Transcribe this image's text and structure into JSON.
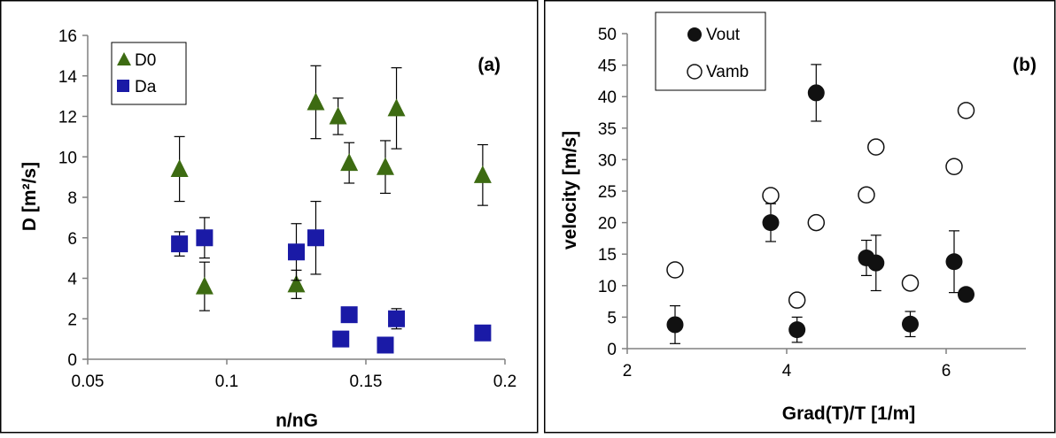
{
  "chart_data": [
    {
      "type": "scatter",
      "panel_label": "(a)",
      "xlabel": "n/nG",
      "ylabel": "D [m²/s]",
      "xlim": [
        0.05,
        0.2
      ],
      "ylim": [
        0,
        16
      ],
      "x_ticks": [
        "0.05",
        "0.1",
        "0.15",
        "0.2"
      ],
      "y_ticks": [
        "0",
        "2",
        "4",
        "6",
        "8",
        "10",
        "12",
        "14",
        "16"
      ],
      "x_tick_values": [
        0.05,
        0.1,
        0.15,
        0.2
      ],
      "y_tick_values": [
        0,
        2,
        4,
        6,
        8,
        10,
        12,
        14,
        16
      ],
      "grid": false,
      "legend_position": "top-left",
      "series": [
        {
          "name": "D0",
          "marker": "triangle",
          "color": "#3d6b12",
          "points": [
            {
              "x": 0.083,
              "y": 9.4,
              "err": 1.6
            },
            {
              "x": 0.092,
              "y": 3.6,
              "err": 1.2
            },
            {
              "x": 0.125,
              "y": 3.7,
              "err": 0.7
            },
            {
              "x": 0.132,
              "y": 12.7,
              "err": 1.8
            },
            {
              "x": 0.14,
              "y": 12.0,
              "err": 0.9
            },
            {
              "x": 0.144,
              "y": 9.7,
              "err": 1.0
            },
            {
              "x": 0.157,
              "y": 9.5,
              "err": 1.3
            },
            {
              "x": 0.161,
              "y": 12.4,
              "err": 2.0
            },
            {
              "x": 0.192,
              "y": 9.1,
              "err": 1.5
            }
          ]
        },
        {
          "name": "Da",
          "marker": "square",
          "color": "#1a1aa6",
          "points": [
            {
              "x": 0.083,
              "y": 5.7,
              "err": 0.6
            },
            {
              "x": 0.092,
              "y": 6.0,
              "err": 1.0
            },
            {
              "x": 0.125,
              "y": 5.3,
              "err": 1.4
            },
            {
              "x": 0.132,
              "y": 6.0,
              "err": 1.8
            },
            {
              "x": 0.141,
              "y": 1.0,
              "err": 0
            },
            {
              "x": 0.144,
              "y": 2.2,
              "err": 0
            },
            {
              "x": 0.157,
              "y": 0.7,
              "err": 0
            },
            {
              "x": 0.161,
              "y": 2.0,
              "err": 0.5
            },
            {
              "x": 0.192,
              "y": 1.3,
              "err": 0
            }
          ]
        }
      ]
    },
    {
      "type": "scatter",
      "panel_label": "(b)",
      "xlabel": "Grad(T)/T [1/m]",
      "ylabel": "velocity [m/s]",
      "xlim": [
        2,
        7
      ],
      "ylim": [
        0,
        50
      ],
      "x_ticks": [
        "2",
        "4",
        "6"
      ],
      "y_ticks": [
        "0",
        "5",
        "10",
        "15",
        "20",
        "25",
        "30",
        "35",
        "40",
        "45",
        "50"
      ],
      "x_tick_values": [
        2,
        4,
        6
      ],
      "y_tick_values": [
        0,
        5,
        10,
        15,
        20,
        25,
        30,
        35,
        40,
        45,
        50
      ],
      "grid": false,
      "legend_position": "top-left",
      "series": [
        {
          "name": "Vout",
          "marker": "filled-circle",
          "color": "#111111",
          "points": [
            {
              "x": 2.6,
              "y": 3.8,
              "err": 3.0
            },
            {
              "x": 3.8,
              "y": 20.0,
              "err": 3.0
            },
            {
              "x": 4.13,
              "y": 3.0,
              "err": 2.0
            },
            {
              "x": 4.37,
              "y": 40.6,
              "err": 4.5
            },
            {
              "x": 5.0,
              "y": 14.4,
              "err": 2.8
            },
            {
              "x": 5.12,
              "y": 13.6,
              "err": 4.4
            },
            {
              "x": 5.55,
              "y": 3.9,
              "err": 2.0
            },
            {
              "x": 6.1,
              "y": 13.8,
              "err": 4.9
            },
            {
              "x": 6.25,
              "y": 8.6,
              "err": 0
            }
          ]
        },
        {
          "name": "Vamb",
          "marker": "open-circle",
          "color": "#111111",
          "points": [
            {
              "x": 2.6,
              "y": 12.5
            },
            {
              "x": 3.8,
              "y": 24.3
            },
            {
              "x": 4.13,
              "y": 7.7
            },
            {
              "x": 4.37,
              "y": 20.0
            },
            {
              "x": 5.0,
              "y": 24.4
            },
            {
              "x": 5.12,
              "y": 32.0
            },
            {
              "x": 5.55,
              "y": 10.4
            },
            {
              "x": 6.1,
              "y": 28.9
            },
            {
              "x": 6.25,
              "y": 37.8
            }
          ]
        }
      ]
    }
  ]
}
